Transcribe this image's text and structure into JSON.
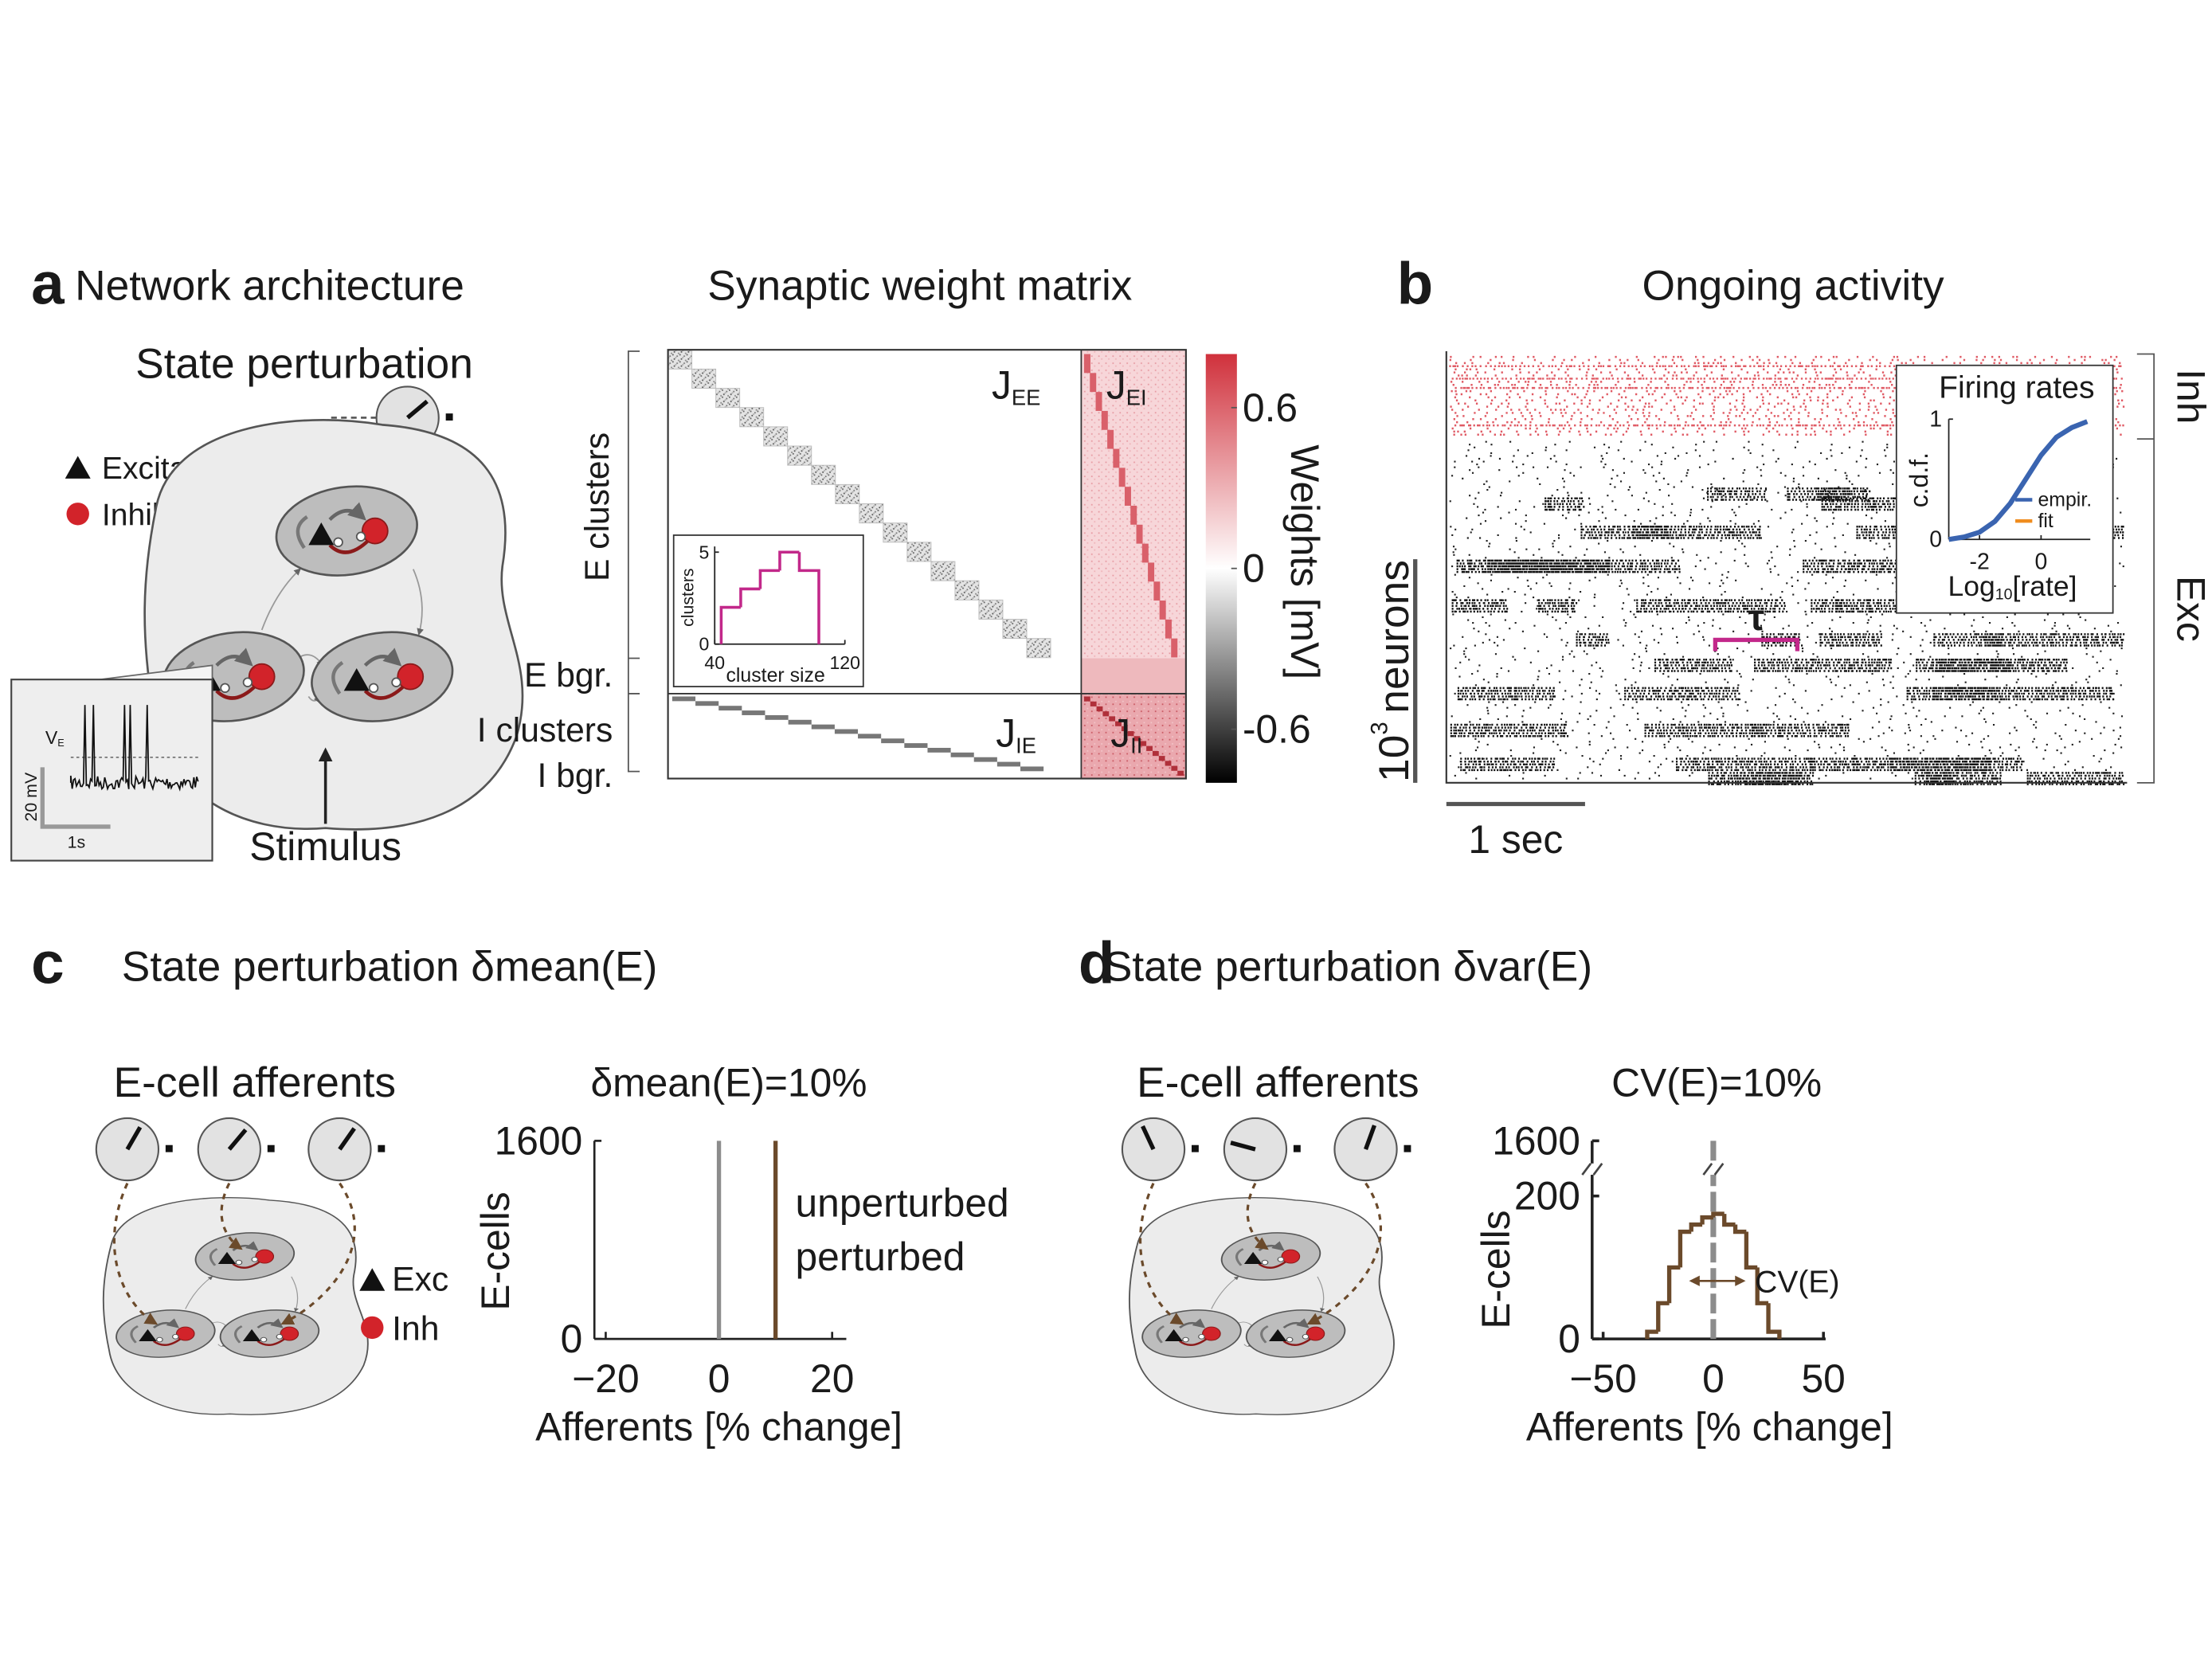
{
  "panel_a": {
    "letter": "a",
    "title": "Network architecture",
    "perturbation": "State perturbation",
    "legend": {
      "excitatory": "Excitatory",
      "inhibitory": "Inhibitory"
    },
    "stimulus": "Stimulus",
    "trace": {
      "v": "V",
      "v_sub": "E",
      "scale_v": "20 mV",
      "scale_t": "1s"
    }
  },
  "matrix": {
    "title": "Synaptic weight matrix",
    "blocks": {
      "ee": {
        "main": "J",
        "sub": "EE"
      },
      "ei": {
        "main": "J",
        "sub": "EI"
      },
      "ie": {
        "main": "J",
        "sub": "IE"
      },
      "ii": {
        "main": "J",
        "sub": "II"
      }
    },
    "rows": {
      "e_clusters": "E clusters",
      "e_bgr": "E bgr.",
      "i_clusters": "I clusters",
      "i_bgr": "I bgr."
    },
    "colorbar": {
      "label": "Weights [mV]",
      "clim": [
        -0.8,
        0.8
      ],
      "ticks": [
        0.6,
        0,
        -0.6
      ],
      "colors": [
        "#000000",
        "#ffffff",
        "#d0313c"
      ]
    }
  },
  "panel_b": {
    "letter": "b",
    "title": "Ongoing activity",
    "populations": {
      "inh": "Inh",
      "exc": "Exc"
    },
    "scale_neurons": {
      "base": "10",
      "exp": "3",
      "text": "neurons"
    },
    "scale_time": "1 sec",
    "tau": "τ"
  },
  "panel_c": {
    "letter": "c",
    "title": "State perturbation δmean(E)",
    "afferents": "E-cell afferents",
    "legend": {
      "exc": "Exc",
      "inh": "Inh"
    }
  },
  "panel_d": {
    "letter": "d",
    "title": "State perturbation δvar(E)",
    "afferents": "E-cell afferents"
  },
  "chart_data": [
    {
      "type": "histogram",
      "xlabel": "cluster size",
      "ylabel": "clusters",
      "bins": [
        44,
        56,
        68,
        80,
        92,
        104
      ],
      "values": [
        2,
        3,
        4,
        5,
        4
      ],
      "color": "#c2288a",
      "xlim": [
        40,
        120
      ],
      "ylim": [
        0,
        5
      ],
      "xticks": [
        40,
        120
      ],
      "yticks": [
        0,
        5
      ]
    },
    {
      "type": "line",
      "title": "Firing rates",
      "xlabel": {
        "main": "Log",
        "sub": "10",
        "rest": "[rate]"
      },
      "ylabel": "c.d.f.",
      "x": [
        -3,
        -2.5,
        -2,
        -1.5,
        -1,
        -0.5,
        0,
        0.5,
        1,
        1.5
      ],
      "series": [
        {
          "name": "empir.",
          "color": "#3a64b0",
          "values": [
            0,
            0.02,
            0.06,
            0.15,
            0.3,
            0.5,
            0.7,
            0.85,
            0.93,
            0.98
          ]
        },
        {
          "name": "fit",
          "color": "#f08c1e",
          "values": [
            0,
            0.02,
            0.06,
            0.15,
            0.31,
            0.5,
            0.7,
            0.84,
            0.93,
            0.98
          ]
        }
      ],
      "xlim": [
        -3,
        1.6
      ],
      "ylim": [
        0,
        1
      ],
      "xticks": [
        -2,
        0
      ],
      "yticks": [
        0,
        1
      ]
    },
    {
      "type": "stem",
      "title": "δmean(E)=10%",
      "title_color": "#6b4a2b",
      "xlabel": "Afferents [% change]",
      "ylabel": "E-cells",
      "series": [
        {
          "name": "unperturbed",
          "color": "#8c8c8c",
          "x": [
            0
          ],
          "values": [
            1600
          ]
        },
        {
          "name": "perturbed",
          "color": "#6b4a2b",
          "x": [
            10
          ],
          "values": [
            1600
          ]
        }
      ],
      "xlim": [
        -22,
        22.5
      ],
      "ylim": [
        0,
        1600
      ],
      "xticks": [
        {
          "value": -20,
          "label": "−20"
        },
        0,
        20
      ],
      "yticks": [
        0,
        1600
      ]
    },
    {
      "type": "histogram",
      "title": "CV(E)=10%",
      "title_color": "#6b4a2b",
      "xlabel": "Afferents [% change]",
      "ylabel": "E-cells",
      "bins": [
        -30,
        -25,
        -20,
        -15,
        -10,
        -5,
        0,
        5,
        10,
        15,
        20,
        25,
        30
      ],
      "values": [
        10,
        50,
        100,
        150,
        160,
        170,
        175,
        160,
        150,
        100,
        50,
        10
      ],
      "color": "#6b4a2b",
      "reference_x": 0,
      "reference_color": "#8c8c8c",
      "annotation": "CV(E)",
      "xlim": [
        -55,
        51
      ],
      "ylim": [
        0,
        200
      ],
      "xticks": [
        {
          "value": -50,
          "label": "−50"
        },
        0,
        50
      ],
      "yticks": [
        0,
        200,
        1600
      ],
      "y_break": true
    }
  ]
}
